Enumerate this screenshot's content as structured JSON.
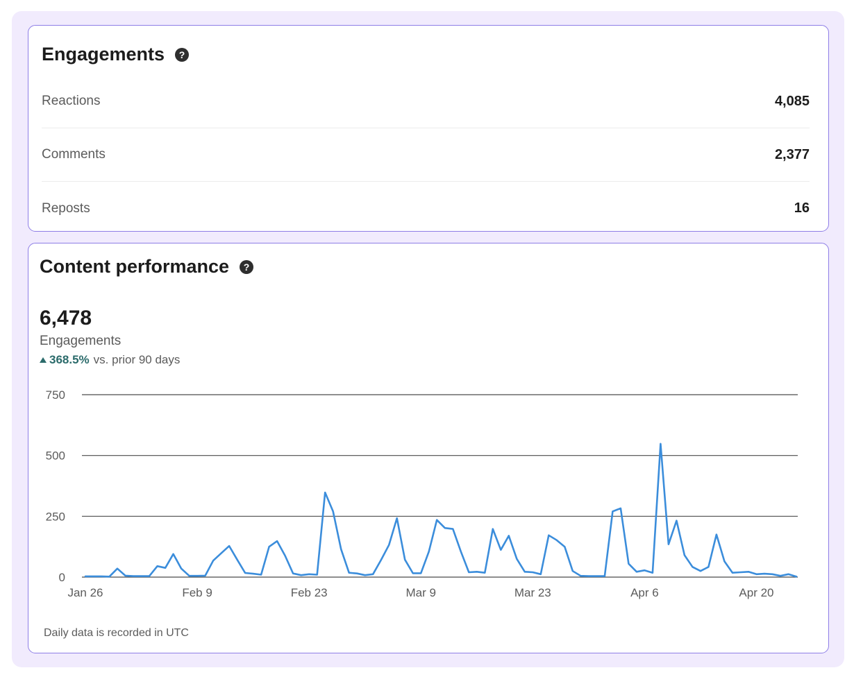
{
  "engagements_card": {
    "title": "Engagements",
    "rows": [
      {
        "label": "Reactions",
        "value": "4,085"
      },
      {
        "label": "Comments",
        "value": "2,377"
      },
      {
        "label": "Reposts",
        "value": "16"
      }
    ]
  },
  "performance_card": {
    "title": "Content performance",
    "total": "6,478",
    "total_label": "Engagements",
    "change_pct": "368.5%",
    "change_text": "vs. prior 90 days",
    "footnote": "Daily data is recorded in UTC"
  },
  "help_icon": "question-circle-icon",
  "colors": {
    "card_border": "#8d7de6",
    "outer_background": "#f1ebfd",
    "line": "#3b8ddb",
    "positive_change": "#2b6b6b"
  },
  "chart_data": {
    "type": "line",
    "title": "",
    "xlabel": "",
    "ylabel": "",
    "ylim": [
      0,
      750
    ],
    "y_ticks": [
      0,
      250,
      500,
      750
    ],
    "grid": true,
    "x_ticks": [
      {
        "label": "Jan 26",
        "day": 0
      },
      {
        "label": "Feb 9",
        "day": 14
      },
      {
        "label": "Feb 23",
        "day": 28
      },
      {
        "label": "Mar 9",
        "day": 42
      },
      {
        "label": "Mar 23",
        "day": 56
      },
      {
        "label": "Apr 6",
        "day": 70
      },
      {
        "label": "Apr 20",
        "day": 84
      }
    ],
    "series": [
      {
        "values": [
          3,
          3,
          3,
          2,
          35,
          6,
          4,
          4,
          4,
          45,
          38,
          95,
          35,
          5,
          5,
          6,
          68,
          98,
          128,
          72,
          17,
          14,
          10,
          125,
          148,
          88,
          15,
          8,
          12,
          10,
          348,
          270,
          115,
          18,
          15,
          8,
          12,
          70,
          132,
          242,
          72,
          16,
          16,
          105,
          235,
          202,
          198,
          105,
          20,
          22,
          18,
          198,
          112,
          170,
          75,
          22,
          20,
          12,
          172,
          152,
          125,
          25,
          5,
          4,
          4,
          4,
          270,
          283,
          55,
          22,
          28,
          18,
          548,
          135,
          232,
          90,
          42,
          25,
          42,
          175,
          65,
          18,
          20,
          22,
          12,
          14,
          12,
          5,
          12,
          2
        ]
      }
    ]
  }
}
